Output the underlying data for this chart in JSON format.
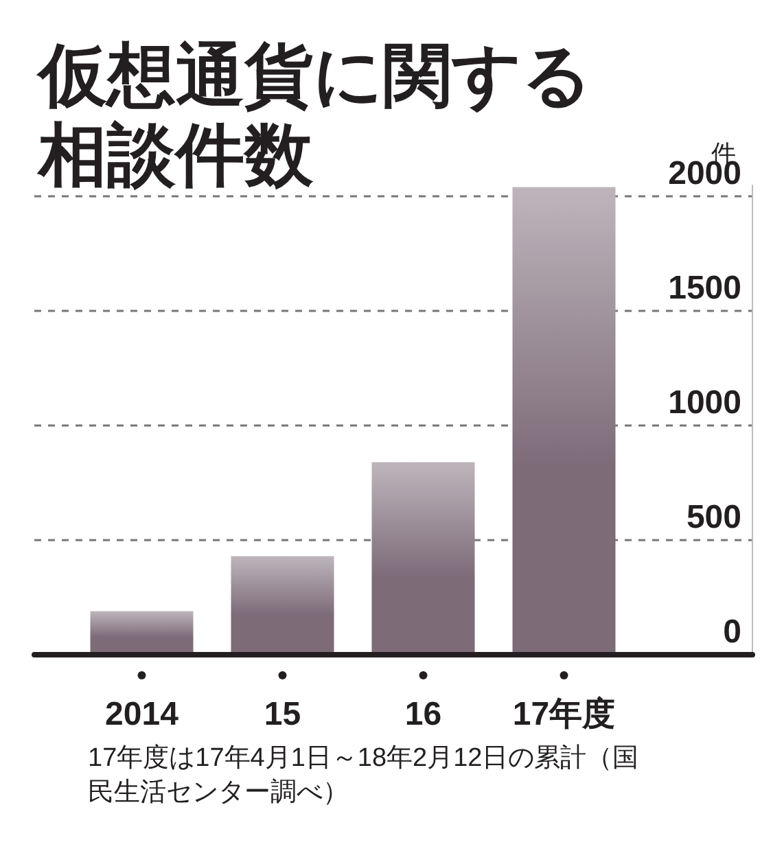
{
  "chart_data": {
    "type": "bar",
    "title": "仮想通貨に関する相談件数",
    "ylabel": "件",
    "categories": [
      "2014",
      "15",
      "16",
      "17年度"
    ],
    "values": [
      190,
      430,
      840,
      2040
    ],
    "color": "#7d6b78",
    "ylim": [
      0,
      2050
    ],
    "yticks": [
      0,
      500,
      1000,
      1500,
      2000
    ],
    "grid": "y",
    "annotations": [
      "17年度は17年4月1日～18年2月12日の累計（国民生活センター調べ）"
    ]
  }
}
